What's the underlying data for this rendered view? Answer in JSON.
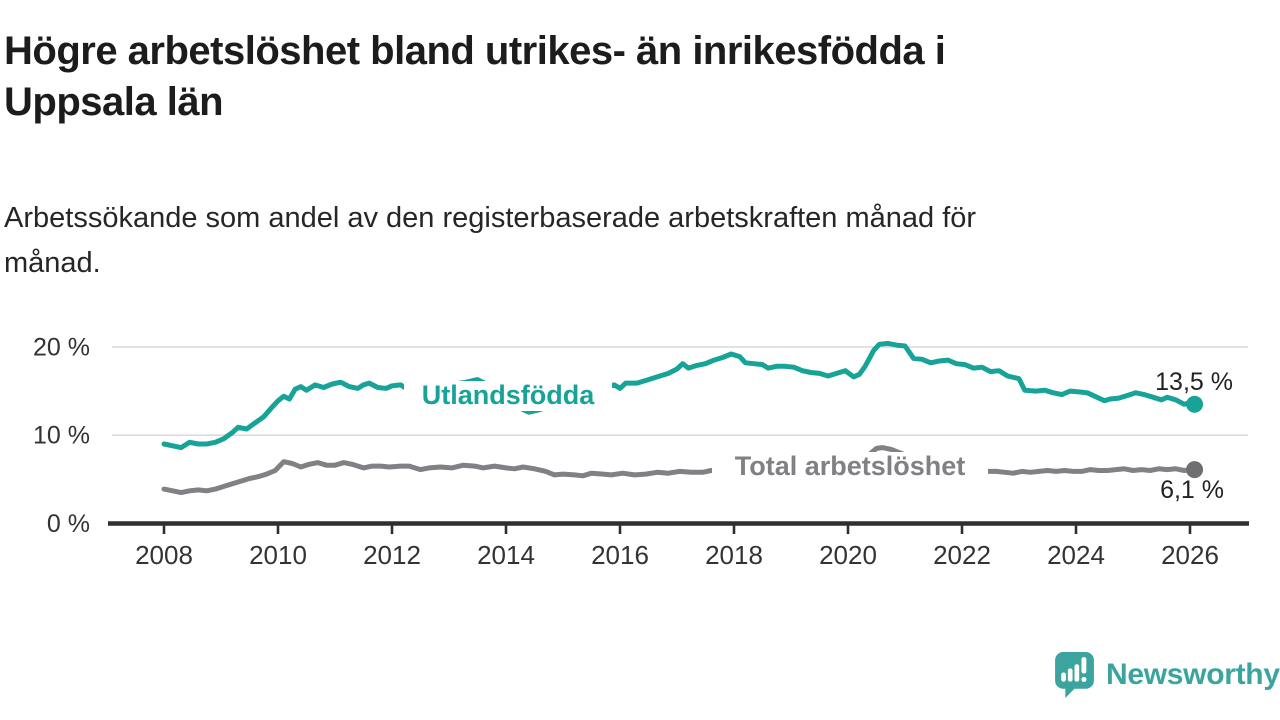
{
  "header": {
    "title_lines": [
      "Högre arbetslöshet bland utrikes- än inrikesfödda i",
      "Uppsala län"
    ],
    "subtitle_lines": [
      "Arbetssökande som andel av den registerbaserade arbetskraften månad för",
      "månad."
    ]
  },
  "chart_data": {
    "type": "line",
    "title": "Högre arbetslöshet bland utrikes- än inrikesfödda i Uppsala län",
    "subtitle": "Arbetssökande som andel av den registerbaserade arbetskraften månad för månad.",
    "unit": "%",
    "xlabel": "",
    "ylabel": "",
    "xlim": [
      2007.6,
      2027.0
    ],
    "ylim": [
      0,
      21.5
    ],
    "grid": "horizontal",
    "legend_position": "inline-labels",
    "x_axis": {
      "ticks": [
        {
          "v": 2008,
          "label": "2008"
        },
        {
          "v": 2010,
          "label": "2010"
        },
        {
          "v": 2012,
          "label": "2012"
        },
        {
          "v": 2014,
          "label": "2014"
        },
        {
          "v": 2016,
          "label": "2016"
        },
        {
          "v": 2018,
          "label": "2018"
        },
        {
          "v": 2020,
          "label": "2020"
        },
        {
          "v": 2022,
          "label": "2022"
        },
        {
          "v": 2024,
          "label": "2024"
        },
        {
          "v": 2026,
          "label": "2026"
        }
      ]
    },
    "y_axis": {
      "ticks": [
        {
          "v": 0,
          "label": "0 %"
        },
        {
          "v": 10,
          "label": "10 %"
        },
        {
          "v": 20,
          "label": "20 %"
        }
      ]
    },
    "series": [
      {
        "name": "Utlandsfödda",
        "color": "#17a398",
        "dot_color": "#17a398",
        "end_label": "13,5 %",
        "end_value": 13.5,
        "points": [
          [
            2008.0,
            9.0
          ],
          [
            2008.15,
            8.8
          ],
          [
            2008.3,
            8.6
          ],
          [
            2008.45,
            9.2
          ],
          [
            2008.6,
            9.0
          ],
          [
            2008.75,
            9.0
          ],
          [
            2008.9,
            9.2
          ],
          [
            2009.05,
            9.6
          ],
          [
            2009.2,
            10.3
          ],
          [
            2009.3,
            10.9
          ],
          [
            2009.45,
            10.7
          ],
          [
            2009.6,
            11.4
          ],
          [
            2009.75,
            12.1
          ],
          [
            2009.9,
            13.2
          ],
          [
            2010.0,
            13.9
          ],
          [
            2010.1,
            14.4
          ],
          [
            2010.2,
            14.1
          ],
          [
            2010.3,
            15.2
          ],
          [
            2010.4,
            15.5
          ],
          [
            2010.5,
            15.1
          ],
          [
            2010.65,
            15.7
          ],
          [
            2010.8,
            15.4
          ],
          [
            2010.95,
            15.8
          ],
          [
            2011.1,
            16.0
          ],
          [
            2011.25,
            15.5
          ],
          [
            2011.4,
            15.3
          ],
          [
            2011.5,
            15.7
          ],
          [
            2011.6,
            15.9
          ],
          [
            2011.75,
            15.4
          ],
          [
            2011.9,
            15.3
          ],
          [
            2012.0,
            15.6
          ],
          [
            2012.15,
            15.7
          ],
          [
            2012.3,
            15.1
          ],
          [
            2012.45,
            15.4
          ],
          [
            2012.6,
            15.4
          ],
          [
            2012.75,
            15.2
          ],
          [
            2012.9,
            15.5
          ],
          [
            2013.1,
            15.8
          ],
          [
            2013.3,
            16.0
          ],
          [
            2013.5,
            16.3
          ],
          [
            2013.65,
            15.8
          ],
          [
            2013.8,
            15.0
          ],
          [
            2014.0,
            14.2
          ],
          [
            2014.2,
            13.2
          ],
          [
            2014.4,
            12.6
          ],
          [
            2014.6,
            12.9
          ],
          [
            2014.8,
            13.4
          ],
          [
            2015.0,
            13.9
          ],
          [
            2015.2,
            14.4
          ],
          [
            2015.45,
            14.9
          ],
          [
            2015.7,
            15.4
          ],
          [
            2015.9,
            15.7
          ],
          [
            2016.0,
            15.3
          ],
          [
            2016.1,
            15.9
          ],
          [
            2016.3,
            15.9
          ],
          [
            2016.5,
            16.3
          ],
          [
            2016.7,
            16.7
          ],
          [
            2016.85,
            17.0
          ],
          [
            2017.0,
            17.5
          ],
          [
            2017.1,
            18.1
          ],
          [
            2017.2,
            17.6
          ],
          [
            2017.35,
            17.9
          ],
          [
            2017.5,
            18.1
          ],
          [
            2017.65,
            18.5
          ],
          [
            2017.8,
            18.8
          ],
          [
            2017.95,
            19.2
          ],
          [
            2018.1,
            18.9
          ],
          [
            2018.2,
            18.2
          ],
          [
            2018.35,
            18.1
          ],
          [
            2018.5,
            18.0
          ],
          [
            2018.6,
            17.6
          ],
          [
            2018.75,
            17.8
          ],
          [
            2018.9,
            17.8
          ],
          [
            2019.05,
            17.7
          ],
          [
            2019.2,
            17.3
          ],
          [
            2019.35,
            17.1
          ],
          [
            2019.5,
            17.0
          ],
          [
            2019.65,
            16.7
          ],
          [
            2019.8,
            17.0
          ],
          [
            2019.95,
            17.3
          ],
          [
            2020.1,
            16.6
          ],
          [
            2020.2,
            16.9
          ],
          [
            2020.3,
            17.8
          ],
          [
            2020.45,
            19.6
          ],
          [
            2020.55,
            20.3
          ],
          [
            2020.7,
            20.4
          ],
          [
            2020.85,
            20.2
          ],
          [
            2021.0,
            20.1
          ],
          [
            2021.15,
            18.7
          ],
          [
            2021.3,
            18.6
          ],
          [
            2021.45,
            18.2
          ],
          [
            2021.6,
            18.4
          ],
          [
            2021.75,
            18.5
          ],
          [
            2021.9,
            18.1
          ],
          [
            2022.05,
            18.0
          ],
          [
            2022.2,
            17.6
          ],
          [
            2022.35,
            17.7
          ],
          [
            2022.5,
            17.2
          ],
          [
            2022.65,
            17.3
          ],
          [
            2022.8,
            16.7
          ],
          [
            2023.0,
            16.4
          ],
          [
            2023.1,
            15.1
          ],
          [
            2023.3,
            15.0
          ],
          [
            2023.45,
            15.1
          ],
          [
            2023.6,
            14.8
          ],
          [
            2023.75,
            14.6
          ],
          [
            2023.9,
            15.0
          ],
          [
            2024.05,
            14.9
          ],
          [
            2024.2,
            14.8
          ],
          [
            2024.4,
            14.2
          ],
          [
            2024.5,
            13.9
          ],
          [
            2024.6,
            14.1
          ],
          [
            2024.75,
            14.2
          ],
          [
            2024.9,
            14.5
          ],
          [
            2025.05,
            14.8
          ],
          [
            2025.2,
            14.6
          ],
          [
            2025.35,
            14.3
          ],
          [
            2025.5,
            14.0
          ],
          [
            2025.6,
            14.3
          ],
          [
            2025.75,
            14.0
          ],
          [
            2025.9,
            13.5
          ],
          [
            2026.0,
            13.7
          ],
          [
            2026.08,
            13.5
          ]
        ]
      },
      {
        "name": "Total arbetslöshet",
        "color": "#808085",
        "dot_color": "#6e6e73",
        "end_label": "6,1 %",
        "end_value": 6.1,
        "points": [
          [
            2008.0,
            3.9
          ],
          [
            2008.15,
            3.7
          ],
          [
            2008.3,
            3.5
          ],
          [
            2008.45,
            3.7
          ],
          [
            2008.6,
            3.8
          ],
          [
            2008.75,
            3.7
          ],
          [
            2008.9,
            3.9
          ],
          [
            2009.1,
            4.3
          ],
          [
            2009.3,
            4.7
          ],
          [
            2009.5,
            5.1
          ],
          [
            2009.65,
            5.3
          ],
          [
            2009.8,
            5.6
          ],
          [
            2009.95,
            6.0
          ],
          [
            2010.1,
            7.0
          ],
          [
            2010.25,
            6.8
          ],
          [
            2010.4,
            6.4
          ],
          [
            2010.55,
            6.7
          ],
          [
            2010.7,
            6.9
          ],
          [
            2010.85,
            6.6
          ],
          [
            2011.0,
            6.6
          ],
          [
            2011.15,
            6.9
          ],
          [
            2011.3,
            6.7
          ],
          [
            2011.5,
            6.3
          ],
          [
            2011.65,
            6.5
          ],
          [
            2011.8,
            6.5
          ],
          [
            2011.95,
            6.4
          ],
          [
            2012.15,
            6.5
          ],
          [
            2012.3,
            6.5
          ],
          [
            2012.5,
            6.1
          ],
          [
            2012.65,
            6.3
          ],
          [
            2012.85,
            6.4
          ],
          [
            2013.05,
            6.3
          ],
          [
            2013.25,
            6.6
          ],
          [
            2013.45,
            6.5
          ],
          [
            2013.6,
            6.3
          ],
          [
            2013.8,
            6.5
          ],
          [
            2014.0,
            6.3
          ],
          [
            2014.15,
            6.2
          ],
          [
            2014.3,
            6.4
          ],
          [
            2014.5,
            6.2
          ],
          [
            2014.7,
            5.9
          ],
          [
            2014.85,
            5.5
          ],
          [
            2015.0,
            5.6
          ],
          [
            2015.2,
            5.5
          ],
          [
            2015.35,
            5.4
          ],
          [
            2015.5,
            5.7
          ],
          [
            2015.7,
            5.6
          ],
          [
            2015.85,
            5.5
          ],
          [
            2016.05,
            5.7
          ],
          [
            2016.25,
            5.5
          ],
          [
            2016.45,
            5.6
          ],
          [
            2016.65,
            5.8
          ],
          [
            2016.85,
            5.7
          ],
          [
            2017.05,
            5.9
          ],
          [
            2017.25,
            5.8
          ],
          [
            2017.45,
            5.8
          ],
          [
            2017.6,
            6.0
          ],
          [
            2017.8,
            6.0
          ],
          [
            2018.0,
            6.0
          ],
          [
            2018.3,
            5.9
          ],
          [
            2018.6,
            5.8
          ],
          [
            2018.9,
            5.7
          ],
          [
            2019.2,
            5.6
          ],
          [
            2019.5,
            5.7
          ],
          [
            2019.8,
            5.9
          ],
          [
            2020.1,
            6.3
          ],
          [
            2020.3,
            7.4
          ],
          [
            2020.5,
            8.5
          ],
          [
            2020.6,
            8.6
          ],
          [
            2020.75,
            8.4
          ],
          [
            2020.95,
            7.9
          ],
          [
            2021.2,
            7.3
          ],
          [
            2021.5,
            6.8
          ],
          [
            2021.8,
            6.4
          ],
          [
            2022.1,
            6.1
          ],
          [
            2022.4,
            5.9
          ],
          [
            2022.6,
            5.9
          ],
          [
            2022.75,
            5.8
          ],
          [
            2022.9,
            5.7
          ],
          [
            2023.05,
            5.9
          ],
          [
            2023.2,
            5.8
          ],
          [
            2023.35,
            5.9
          ],
          [
            2023.5,
            6.0
          ],
          [
            2023.65,
            5.9
          ],
          [
            2023.8,
            6.0
          ],
          [
            2023.95,
            5.9
          ],
          [
            2024.1,
            5.9
          ],
          [
            2024.25,
            6.1
          ],
          [
            2024.4,
            6.0
          ],
          [
            2024.55,
            6.0
          ],
          [
            2024.7,
            6.1
          ],
          [
            2024.85,
            6.2
          ],
          [
            2025.0,
            6.0
          ],
          [
            2025.15,
            6.1
          ],
          [
            2025.3,
            6.0
          ],
          [
            2025.45,
            6.2
          ],
          [
            2025.6,
            6.1
          ],
          [
            2025.75,
            6.2
          ],
          [
            2025.9,
            6.0
          ],
          [
            2026.08,
            6.1
          ]
        ]
      }
    ],
    "colors": {
      "accent_teal": "#17a398",
      "gray": "#808085",
      "axis": "#2f2f2f",
      "gridline": "#dcdcdc",
      "value_label": "#222222"
    }
  },
  "footer": {
    "brand": "Newsworthy",
    "brand_color": "#3ba49e"
  }
}
